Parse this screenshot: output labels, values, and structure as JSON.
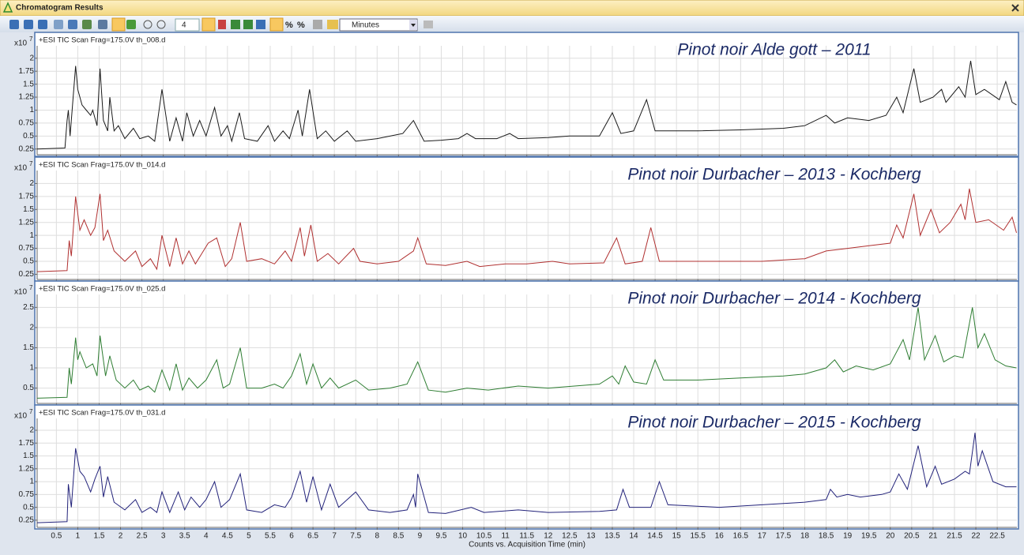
{
  "window": {
    "title": "Chromatogram Results",
    "toolbar": {
      "zoom_level": "4",
      "units": "Minutes",
      "percent_buttons": [
        "%",
        "%"
      ]
    }
  },
  "chart_data": [
    {
      "type": "line",
      "header": "+ESI TIC Scan Frag=175.0V th_008.d",
      "title": "Pinot noir Alde gott – 2011",
      "y_unit": "x10",
      "y_exponent": "7",
      "grid": true,
      "xlim": [
        0.05,
        22.96
      ],
      "ylim": [
        0.14,
        2.24
      ],
      "xticks": [
        0.5,
        1,
        1.5,
        2,
        2.5,
        3,
        3.5,
        4,
        4.5,
        5,
        5.5,
        6,
        6.5,
        7,
        7.5,
        8,
        8.5,
        9,
        9.5,
        10,
        10.5,
        11,
        11.5,
        12,
        12.5,
        13,
        13.5,
        14,
        14.5,
        15,
        15.5,
        16,
        16.5,
        17,
        17.5,
        18,
        18.5,
        19,
        19.5,
        20,
        20.5,
        21,
        21.5,
        22,
        22.5
      ],
      "yticks": [
        0.25,
        0.5,
        0.75,
        1,
        1.25,
        1.5,
        1.75,
        2
      ],
      "x": [
        0.05,
        0.7,
        0.75,
        0.78,
        0.82,
        0.95,
        1.0,
        1.1,
        1.2,
        1.3,
        1.35,
        1.45,
        1.52,
        1.6,
        1.7,
        1.75,
        1.85,
        1.95,
        2.1,
        2.3,
        2.45,
        2.65,
        2.8,
        2.97,
        3.15,
        3.3,
        3.45,
        3.55,
        3.7,
        3.85,
        4.0,
        4.2,
        4.35,
        4.5,
        4.6,
        4.78,
        4.9,
        5.2,
        5.45,
        5.6,
        5.8,
        5.95,
        6.15,
        6.25,
        6.42,
        6.6,
        6.8,
        7.0,
        7.3,
        7.5,
        8.0,
        8.6,
        8.85,
        9.1,
        9.5,
        9.9,
        10.1,
        10.3,
        10.8,
        11.1,
        11.3,
        12.0,
        12.5,
        13.2,
        13.5,
        13.7,
        14.0,
        14.3,
        14.5,
        15.5,
        16.5,
        17.5,
        18.0,
        18.5,
        18.7,
        19.0,
        19.5,
        19.9,
        20.15,
        20.3,
        20.55,
        20.7,
        21.0,
        21.2,
        21.3,
        21.6,
        21.75,
        21.88,
        22.0,
        22.2,
        22.55,
        22.7,
        22.85,
        22.95
      ],
      "series": [
        {
          "color": "#1a1a1a",
          "values": [
            0.25,
            0.27,
            0.8,
            1.0,
            0.5,
            1.85,
            1.4,
            1.1,
            1.0,
            0.9,
            1.0,
            0.7,
            1.8,
            0.8,
            0.6,
            1.25,
            0.6,
            0.7,
            0.45,
            0.65,
            0.45,
            0.5,
            0.4,
            1.4,
            0.4,
            0.85,
            0.4,
            0.95,
            0.5,
            0.8,
            0.5,
            1.05,
            0.5,
            0.7,
            0.4,
            0.95,
            0.45,
            0.4,
            0.7,
            0.4,
            0.6,
            0.45,
            1.0,
            0.5,
            1.4,
            0.45,
            0.6,
            0.4,
            0.6,
            0.4,
            0.45,
            0.55,
            0.8,
            0.4,
            0.42,
            0.45,
            0.55,
            0.45,
            0.45,
            0.55,
            0.45,
            0.47,
            0.5,
            0.5,
            0.95,
            0.55,
            0.6,
            1.2,
            0.6,
            0.6,
            0.62,
            0.65,
            0.7,
            0.9,
            0.75,
            0.85,
            0.8,
            0.9,
            1.25,
            0.95,
            1.8,
            1.15,
            1.25,
            1.4,
            1.15,
            1.45,
            1.25,
            1.95,
            1.3,
            1.4,
            1.2,
            1.55,
            1.15,
            1.1
          ]
        }
      ]
    },
    {
      "type": "line",
      "header": "+ESI TIC Scan Frag=175.0V th_014.d",
      "title": "Pinot noir Durbacher – 2013 - Kochberg",
      "y_unit": "x10",
      "y_exponent": "7",
      "grid": true,
      "xlim": [
        0.05,
        22.96
      ],
      "ylim": [
        0.15,
        2.25
      ],
      "xticks": [
        0.5,
        1,
        1.5,
        2,
        2.5,
        3,
        3.5,
        4,
        4.5,
        5,
        5.5,
        6,
        6.5,
        7,
        7.5,
        8,
        8.5,
        9,
        9.5,
        10,
        10.5,
        11,
        11.5,
        12,
        12.5,
        13,
        13.5,
        14,
        14.5,
        15,
        15.5,
        16,
        16.5,
        17,
        17.5,
        18,
        18.5,
        19,
        19.5,
        20,
        20.5,
        21,
        21.5,
        22,
        22.5
      ],
      "yticks": [
        0.25,
        0.5,
        0.75,
        1,
        1.25,
        1.5,
        1.75,
        2
      ],
      "x": [
        0.05,
        0.75,
        0.8,
        0.85,
        0.95,
        1.05,
        1.15,
        1.3,
        1.4,
        1.52,
        1.6,
        1.7,
        1.85,
        2.1,
        2.35,
        2.5,
        2.7,
        2.85,
        2.97,
        3.15,
        3.3,
        3.45,
        3.6,
        3.75,
        4.05,
        4.25,
        4.45,
        4.6,
        4.8,
        4.95,
        5.3,
        5.6,
        5.85,
        6.0,
        6.2,
        6.3,
        6.45,
        6.6,
        6.85,
        7.1,
        7.45,
        7.6,
        8.0,
        8.5,
        8.85,
        8.95,
        9.15,
        9.6,
        10.1,
        10.4,
        11.0,
        11.5,
        12.1,
        12.5,
        13.3,
        13.6,
        13.8,
        14.2,
        14.4,
        14.6,
        16,
        17,
        18,
        18.5,
        19,
        19.5,
        20.0,
        20.15,
        20.3,
        20.55,
        20.7,
        20.95,
        21.15,
        21.4,
        21.65,
        21.75,
        21.85,
        22.0,
        22.3,
        22.65,
        22.85,
        22.95
      ],
      "series": [
        {
          "color": "#b03030",
          "values": [
            0.3,
            0.32,
            0.9,
            0.6,
            1.75,
            1.1,
            1.3,
            1.0,
            1.15,
            1.8,
            0.9,
            1.1,
            0.7,
            0.5,
            0.7,
            0.4,
            0.55,
            0.35,
            1.0,
            0.4,
            0.95,
            0.45,
            0.7,
            0.45,
            0.85,
            0.95,
            0.4,
            0.55,
            1.25,
            0.5,
            0.55,
            0.45,
            0.7,
            0.5,
            1.15,
            0.6,
            1.2,
            0.5,
            0.65,
            0.45,
            0.75,
            0.5,
            0.45,
            0.5,
            0.7,
            0.95,
            0.45,
            0.42,
            0.5,
            0.4,
            0.45,
            0.45,
            0.5,
            0.45,
            0.47,
            0.95,
            0.45,
            0.5,
            1.15,
            0.5,
            0.5,
            0.5,
            0.55,
            0.7,
            0.75,
            0.8,
            0.85,
            1.2,
            0.95,
            1.8,
            1.0,
            1.5,
            1.05,
            1.25,
            1.6,
            1.3,
            1.9,
            1.25,
            1.3,
            1.1,
            1.35,
            1.05
          ]
        }
      ]
    },
    {
      "type": "line",
      "header": "+ESI TIC Scan Frag=175.0V th_025.d",
      "title": "Pinot noir Durbacher – 2014 - Kochberg",
      "y_unit": "x10",
      "y_exponent": "7",
      "grid": true,
      "xlim": [
        0.05,
        22.96
      ],
      "ylim": [
        0.12,
        2.82
      ],
      "xticks": [
        0.5,
        1,
        1.5,
        2,
        2.5,
        3,
        3.5,
        4,
        4.5,
        5,
        5.5,
        6,
        6.5,
        7,
        7.5,
        8,
        8.5,
        9,
        9.5,
        10,
        10.5,
        11,
        11.5,
        12,
        12.5,
        13,
        13.5,
        14,
        14.5,
        15,
        15.5,
        16,
        16.5,
        17,
        17.5,
        18,
        18.5,
        19,
        19.5,
        20,
        20.5,
        21,
        21.5,
        22,
        22.5
      ],
      "yticks": [
        0.5,
        1,
        1.5,
        2,
        2.5
      ],
      "x": [
        0.05,
        0.75,
        0.8,
        0.85,
        0.95,
        1.0,
        1.05,
        1.2,
        1.35,
        1.45,
        1.52,
        1.65,
        1.75,
        1.9,
        2.1,
        2.3,
        2.45,
        2.65,
        2.8,
        2.97,
        3.15,
        3.3,
        3.45,
        3.6,
        3.8,
        4.0,
        4.25,
        4.4,
        4.55,
        4.8,
        4.95,
        5.3,
        5.6,
        5.8,
        6.0,
        6.2,
        6.35,
        6.5,
        6.7,
        6.9,
        7.1,
        7.5,
        7.8,
        8.3,
        8.7,
        8.95,
        9.2,
        9.6,
        10.1,
        10.6,
        11.3,
        12.0,
        13.2,
        13.5,
        13.65,
        13.8,
        14.0,
        14.3,
        14.5,
        14.7,
        15.5,
        16.5,
        17.5,
        18,
        18.5,
        18.7,
        18.9,
        19.2,
        19.6,
        20.0,
        20.3,
        20.45,
        20.65,
        20.8,
        21.05,
        21.25,
        21.5,
        21.7,
        21.92,
        22.05,
        22.2,
        22.45,
        22.7,
        22.95
      ],
      "series": [
        {
          "color": "#2e7d32",
          "values": [
            0.25,
            0.27,
            1.0,
            0.6,
            1.75,
            1.2,
            1.4,
            1.0,
            1.1,
            0.8,
            1.8,
            0.8,
            1.3,
            0.7,
            0.5,
            0.7,
            0.45,
            0.55,
            0.4,
            0.95,
            0.45,
            1.1,
            0.45,
            0.75,
            0.5,
            0.7,
            1.2,
            0.5,
            0.6,
            1.5,
            0.5,
            0.5,
            0.6,
            0.5,
            0.8,
            1.35,
            0.6,
            1.1,
            0.5,
            0.75,
            0.5,
            0.7,
            0.45,
            0.5,
            0.6,
            1.15,
            0.45,
            0.4,
            0.5,
            0.45,
            0.55,
            0.5,
            0.6,
            0.8,
            0.6,
            1.05,
            0.65,
            0.6,
            1.2,
            0.7,
            0.7,
            0.75,
            0.8,
            0.85,
            1.0,
            1.2,
            0.9,
            1.05,
            0.95,
            1.1,
            1.7,
            1.2,
            2.5,
            1.2,
            1.8,
            1.15,
            1.3,
            1.25,
            2.5,
            1.5,
            1.85,
            1.2,
            1.05,
            1.0
          ]
        }
      ]
    },
    {
      "type": "line",
      "header": "+ESI TIC Scan Frag=175.0V th_031.d",
      "title": "Pinot noir Durbacher – 2015 - Kochberg",
      "y_unit": "x10",
      "y_exponent": "7",
      "grid": true,
      "xlabel": "Counts vs. Acquisition Time (min)",
      "xlim": [
        0.05,
        22.96
      ],
      "ylim": [
        0.11,
        2.23
      ],
      "xticks": [
        0.5,
        1,
        1.5,
        2,
        2.5,
        3,
        3.5,
        4,
        4.5,
        5,
        5.5,
        6,
        6.5,
        7,
        7.5,
        8,
        8.5,
        9,
        9.5,
        10,
        10.5,
        11,
        11.5,
        12,
        12.5,
        13,
        13.5,
        14,
        14.5,
        15,
        15.5,
        16,
        16.5,
        17,
        17.5,
        18,
        18.5,
        19,
        19.5,
        20,
        20.5,
        21,
        21.5,
        22,
        22.5
      ],
      "yticks": [
        0.25,
        0.5,
        0.75,
        1,
        1.25,
        1.5,
        1.75,
        2
      ],
      "x": [
        0.05,
        0.75,
        0.78,
        0.85,
        0.95,
        1.05,
        1.15,
        1.3,
        1.4,
        1.52,
        1.6,
        1.7,
        1.85,
        2.1,
        2.35,
        2.5,
        2.7,
        2.85,
        2.97,
        3.15,
        3.35,
        3.5,
        3.65,
        3.85,
        4.0,
        4.2,
        4.35,
        4.55,
        4.8,
        4.95,
        5.3,
        5.6,
        5.85,
        6.0,
        6.2,
        6.35,
        6.5,
        6.7,
        6.9,
        7.1,
        7.5,
        7.8,
        8.3,
        8.7,
        8.85,
        8.9,
        8.95,
        9.2,
        9.6,
        10.2,
        10.5,
        11.3,
        12.0,
        13.2,
        13.6,
        13.75,
        13.9,
        14.4,
        14.6,
        14.8,
        16,
        17,
        18,
        18.5,
        18.6,
        18.75,
        19.0,
        19.3,
        19.8,
        20.0,
        20.2,
        20.4,
        20.65,
        20.85,
        21.05,
        21.2,
        21.5,
        21.75,
        21.85,
        21.98,
        22.05,
        22.15,
        22.4,
        22.7,
        22.95
      ],
      "series": [
        {
          "color": "#22227a",
          "values": [
            0.2,
            0.22,
            0.95,
            0.5,
            1.65,
            1.2,
            1.1,
            0.8,
            1.05,
            1.3,
            0.7,
            1.1,
            0.6,
            0.45,
            0.65,
            0.4,
            0.5,
            0.4,
            0.8,
            0.4,
            0.8,
            0.45,
            0.7,
            0.5,
            0.65,
            1.0,
            0.5,
            0.65,
            1.15,
            0.45,
            0.4,
            0.55,
            0.5,
            0.7,
            1.2,
            0.6,
            1.1,
            0.45,
            0.95,
            0.5,
            0.8,
            0.45,
            0.4,
            0.45,
            0.75,
            0.5,
            1.15,
            0.4,
            0.38,
            0.5,
            0.4,
            0.45,
            0.4,
            0.42,
            0.45,
            0.85,
            0.5,
            0.5,
            1.0,
            0.55,
            0.5,
            0.55,
            0.6,
            0.65,
            0.85,
            0.7,
            0.75,
            0.7,
            0.75,
            0.8,
            1.15,
            0.85,
            1.7,
            0.9,
            1.3,
            0.95,
            1.05,
            1.2,
            1.15,
            1.95,
            1.3,
            1.6,
            1.0,
            0.9,
            0.9
          ]
        }
      ]
    }
  ]
}
